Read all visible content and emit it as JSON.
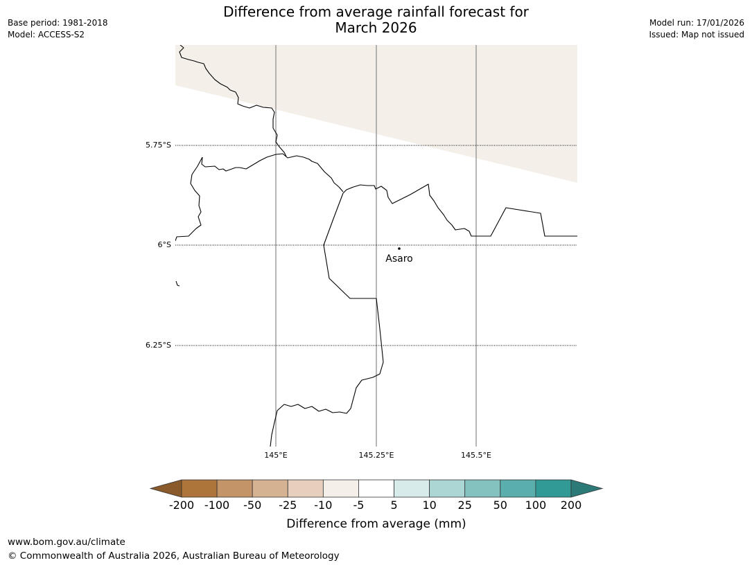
{
  "header": {
    "title_line1": "Difference from average rainfall forecast for",
    "title_line2": "March 2026",
    "base_period": "Base period: 1981-2018",
    "model": "Model: ACCESS-S2",
    "model_run": "Model run: 17/01/2026",
    "issued": "Issued: Map not issued"
  },
  "map": {
    "latitude_labels": [
      "5.75°S",
      "6°S",
      "6.25°S"
    ],
    "longitude_labels": [
      "145°E",
      "145.25°E",
      "145.5°E"
    ],
    "place": {
      "name": "Asaro",
      "lat": -6.01,
      "lon": 145.3
    },
    "shaded_region_color": "#f4efe9",
    "shaded_category": "-10 to -5 mm"
  },
  "colorbar": {
    "title": "Difference from average (mm)",
    "ticks": [
      "-200",
      "-100",
      "-50",
      "-25",
      "-10",
      "-5",
      "5",
      "10",
      "25",
      "50",
      "100",
      "200"
    ],
    "colors": [
      "#8b5a2b",
      "#ad7539",
      "#c39468",
      "#d5b392",
      "#e6d0bd",
      "#f4efe9",
      "#ffffff",
      "#d6ebea",
      "#acd6d4",
      "#83c2bf",
      "#5aaeab",
      "#319a96",
      "#2b7a77"
    ]
  },
  "footer": {
    "url": "www.bom.gov.au/climate",
    "copyright": "© Commonwealth of Australia 2026, Australian Bureau of Meteorology"
  }
}
